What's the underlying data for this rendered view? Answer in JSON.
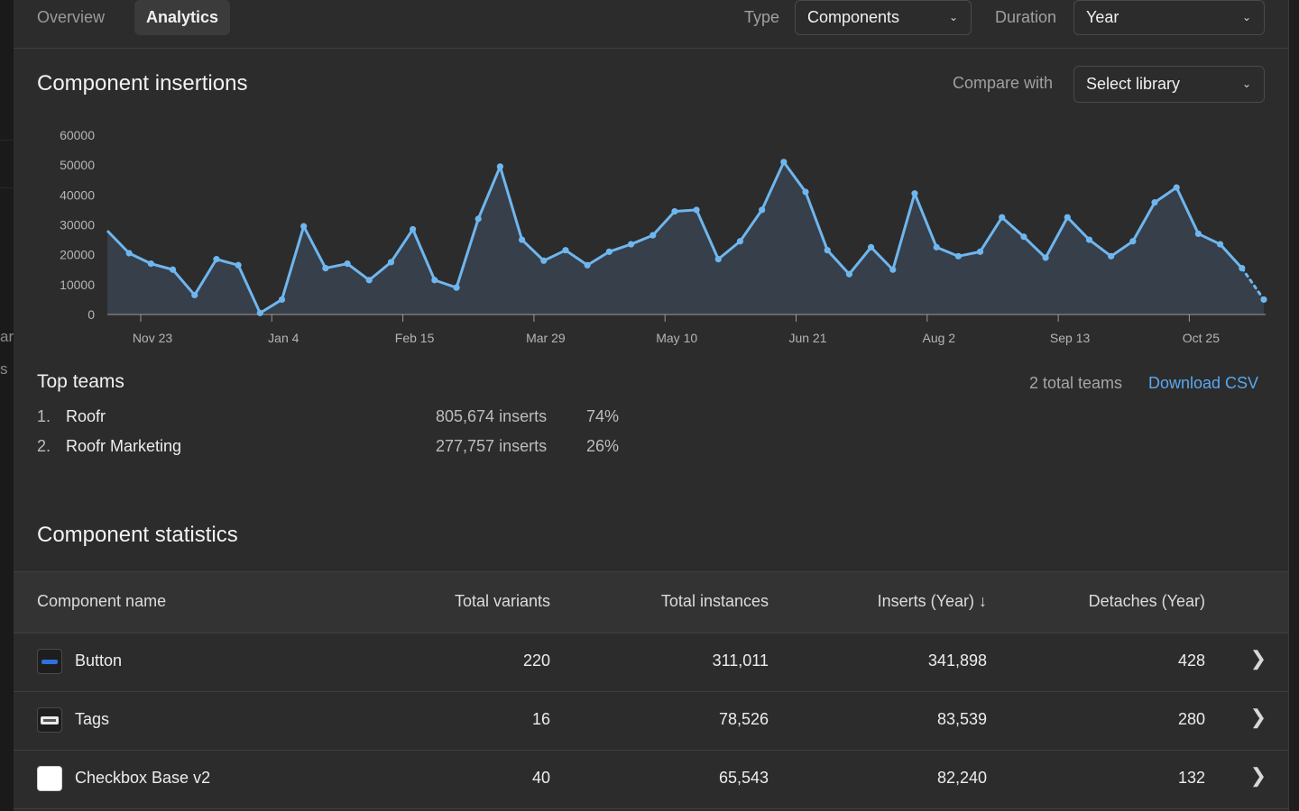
{
  "edge_fragments": [
    "ar",
    "s"
  ],
  "tabs": [
    {
      "label": "Overview"
    },
    {
      "label": "Analytics"
    }
  ],
  "filters": {
    "type_label": "Type",
    "type_value": "Components",
    "duration_label": "Duration",
    "duration_value": "Year"
  },
  "insertions": {
    "title": "Component insertions",
    "compare_label": "Compare with",
    "compare_value": "Select library"
  },
  "chart_data": {
    "type": "area",
    "title": "Component insertions",
    "xlabel": "",
    "ylabel": "",
    "ylim": [
      0,
      60000
    ],
    "yticks": [
      "60000",
      "50000",
      "40000",
      "30000",
      "20000",
      "10000",
      "0"
    ],
    "xtick_labels": [
      "Nov 23",
      "Jan 4",
      "Feb 15",
      "Mar 29",
      "May 10",
      "Jun 21",
      "Aug 2",
      "Sep 13",
      "Oct 25"
    ],
    "grid": false,
    "color": "#6fb6ee",
    "dotted_last_segment": true,
    "series": [
      {
        "values": [
          28000,
          20500,
          17000,
          15000,
          6500,
          18500,
          16500,
          500,
          5000,
          29500,
          15500,
          17000,
          11500,
          17500,
          28500,
          11500,
          9000,
          32000,
          49500,
          25000,
          18000,
          21500,
          16500,
          21000,
          23500,
          26500,
          34500,
          35000,
          18500,
          24500,
          35000,
          51000,
          41000,
          21500,
          13500,
          22500,
          15000,
          40500,
          22500,
          19500,
          21000,
          32500,
          26000,
          19000,
          32500,
          25000,
          19500,
          24500,
          37500,
          42500,
          27000,
          23500,
          15500,
          5000
        ]
      }
    ]
  },
  "top_teams": {
    "title": "Top teams",
    "total": "2 total teams",
    "download": "Download CSV",
    "rows": [
      {
        "rank": "1.",
        "name": "Roofr",
        "inserts": "805,674 inserts",
        "pct": "74%"
      },
      {
        "rank": "2.",
        "name": "Roofr Marketing",
        "inserts": "277,757 inserts",
        "pct": "26%"
      }
    ]
  },
  "stats": {
    "title": "Component statistics",
    "headers": {
      "name": "Component name",
      "variants": "Total variants",
      "instances": "Total instances",
      "inserts": "Inserts (Year) ↓",
      "detaches": "Detaches (Year)"
    },
    "rows": [
      {
        "name": "Button",
        "variants": "220",
        "instances": "311,011",
        "inserts": "341,898",
        "detaches": "428",
        "thumb": "button-thumbnail"
      },
      {
        "name": "Tags",
        "variants": "16",
        "instances": "78,526",
        "inserts": "83,539",
        "detaches": "280",
        "thumb": "tags-thumbnail"
      },
      {
        "name": "Checkbox Base v2",
        "variants": "40",
        "instances": "65,543",
        "inserts": "82,240",
        "detaches": "132",
        "thumb": "checkbox-thumbnail"
      }
    ]
  }
}
